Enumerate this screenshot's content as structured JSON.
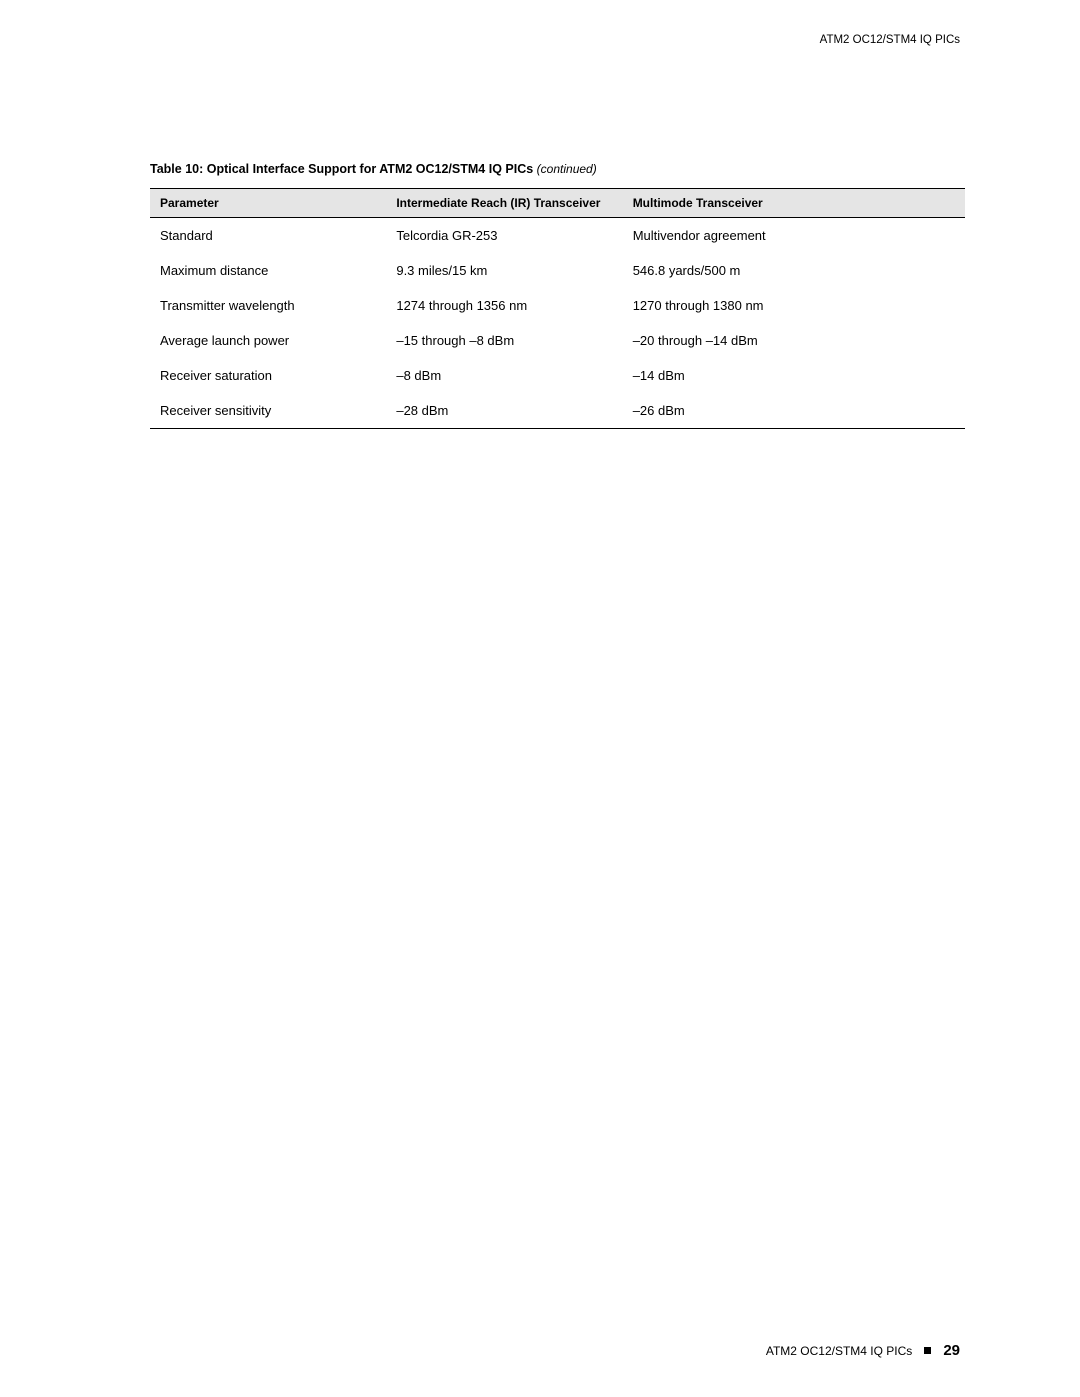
{
  "header_right": "ATM2 OC12/STM4 IQ PICs",
  "title_bold": "Table 10: Optical Interface Support for ATM2 OC12/STM4 IQ PICs",
  "title_ital": "(continued)",
  "columns": [
    "Parameter",
    "Intermediate Reach (IR) Transceiver",
    "Multimode Transceiver"
  ],
  "rows": [
    [
      "Standard",
      "Telcordia GR-253",
      "Multivendor agreement"
    ],
    [
      "Maximum distance",
      "9.3 miles/15 km",
      "546.8 yards/500 m"
    ],
    [
      "Transmitter wavelength",
      "1274 through 1356 nm",
      "1270 through 1380 nm"
    ],
    [
      "Average launch power",
      "–15 through –8 dBm",
      "–20 through –14 dBm"
    ],
    [
      "Receiver saturation",
      "–8 dBm",
      "–14 dBm"
    ],
    [
      "Receiver sensitivity",
      "–28 dBm",
      "–26 dBm"
    ]
  ],
  "footer_text": "ATM2 OC12/STM4 IQ PICs",
  "page_number": "29",
  "colors": {
    "page_bg": "#ffffff",
    "header_bg": "#e5e5e5",
    "border": "#000000",
    "text": "#000000"
  },
  "fonts": {
    "body": "Verdana",
    "bold": "Arial",
    "title_size_pt": 12.5,
    "header_size_pt": 12,
    "cell_size_pt": 13,
    "footer_size_pt": 12,
    "pagenum_size_pt": 15
  }
}
